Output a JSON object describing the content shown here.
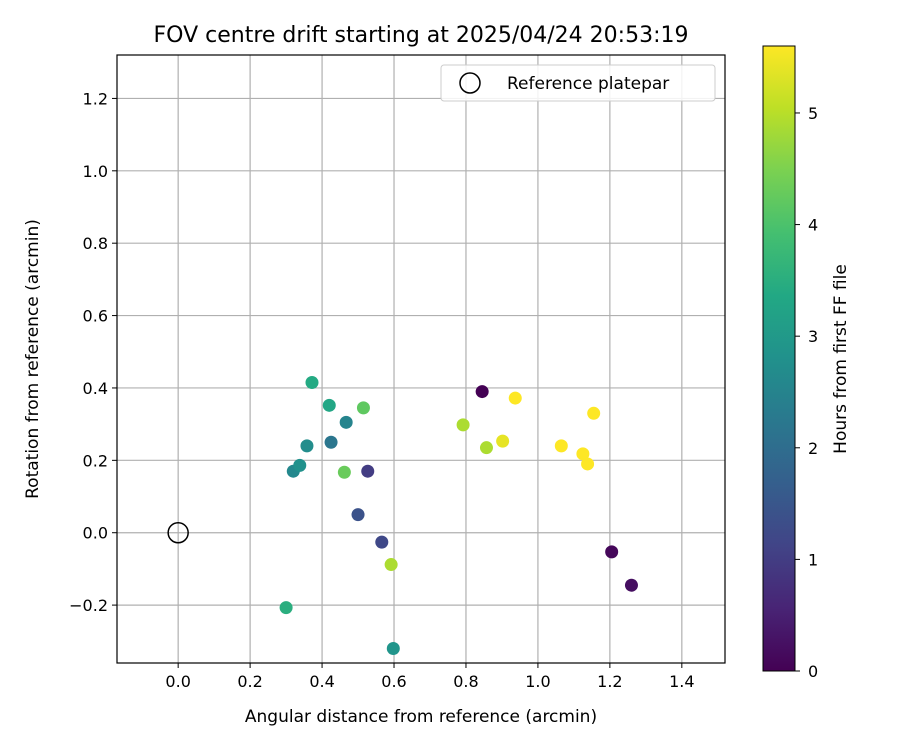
{
  "chart_data": {
    "type": "scatter",
    "title": "FOV centre drift starting at 2025/04/24 20:53:19",
    "xlabel": "Angular distance from reference (arcmin)",
    "ylabel": "Rotation from reference (arcmin)",
    "xlim": [
      -0.17,
      1.52
    ],
    "ylim": [
      -0.36,
      1.32
    ],
    "xticks": [
      0.0,
      0.2,
      0.4,
      0.6,
      0.8,
      1.0,
      1.2,
      1.4
    ],
    "xtick_labels": [
      "0.0",
      "0.2",
      "0.4",
      "0.6",
      "0.8",
      "1.0",
      "1.2",
      "1.4"
    ],
    "yticks": [
      -0.2,
      0.0,
      0.2,
      0.4,
      0.6,
      0.8,
      1.0,
      1.2
    ],
    "ytick_labels": [
      "−0.2",
      "0.0",
      "0.2",
      "0.4",
      "0.6",
      "0.8",
      "1.0",
      "1.2"
    ],
    "grid": true,
    "legend": {
      "position": "upper-right",
      "label": "Reference platepar"
    },
    "reference_point": {
      "x": 0.0,
      "y": 0.0
    },
    "colorbar": {
      "label": "Hours from first FF file",
      "colormap": "viridis",
      "range": [
        0,
        5.6
      ],
      "ticks": [
        0,
        1,
        2,
        3,
        4,
        5
      ],
      "tick_labels": [
        "0",
        "1",
        "2",
        "3",
        "4",
        "5"
      ]
    },
    "points": [
      {
        "x": 0.845,
        "y": 0.39,
        "hours": 0.0
      },
      {
        "x": 1.205,
        "y": -0.053,
        "hours": 0.1
      },
      {
        "x": 1.26,
        "y": -0.145,
        "hours": 0.2
      },
      {
        "x": 0.527,
        "y": 0.17,
        "hours": 1.0
      },
      {
        "x": 0.566,
        "y": -0.026,
        "hours": 1.2
      },
      {
        "x": 0.5,
        "y": 0.05,
        "hours": 1.4
      },
      {
        "x": 0.425,
        "y": 0.25,
        "hours": 2.2
      },
      {
        "x": 0.467,
        "y": 0.305,
        "hours": 2.5
      },
      {
        "x": 0.32,
        "y": 0.17,
        "hours": 2.6
      },
      {
        "x": 0.338,
        "y": 0.186,
        "hours": 2.8
      },
      {
        "x": 0.358,
        "y": 0.24,
        "hours": 2.7
      },
      {
        "x": 0.598,
        "y": -0.32,
        "hours": 2.9
      },
      {
        "x": 0.42,
        "y": 0.352,
        "hours": 3.3
      },
      {
        "x": 0.372,
        "y": 0.415,
        "hours": 3.4
      },
      {
        "x": 0.3,
        "y": -0.207,
        "hours": 3.5
      },
      {
        "x": 0.515,
        "y": 0.345,
        "hours": 4.2
      },
      {
        "x": 0.462,
        "y": 0.167,
        "hours": 4.3
      },
      {
        "x": 0.792,
        "y": 0.298,
        "hours": 4.9
      },
      {
        "x": 0.857,
        "y": 0.235,
        "hours": 4.9
      },
      {
        "x": 0.592,
        "y": -0.088,
        "hours": 4.9
      },
      {
        "x": 0.902,
        "y": 0.253,
        "hours": 5.4
      },
      {
        "x": 0.937,
        "y": 0.372,
        "hours": 5.6
      },
      {
        "x": 1.065,
        "y": 0.24,
        "hours": 5.6
      },
      {
        "x": 1.125,
        "y": 0.218,
        "hours": 5.6
      },
      {
        "x": 1.138,
        "y": 0.19,
        "hours": 5.6
      },
      {
        "x": 1.155,
        "y": 0.33,
        "hours": 5.6
      }
    ]
  }
}
